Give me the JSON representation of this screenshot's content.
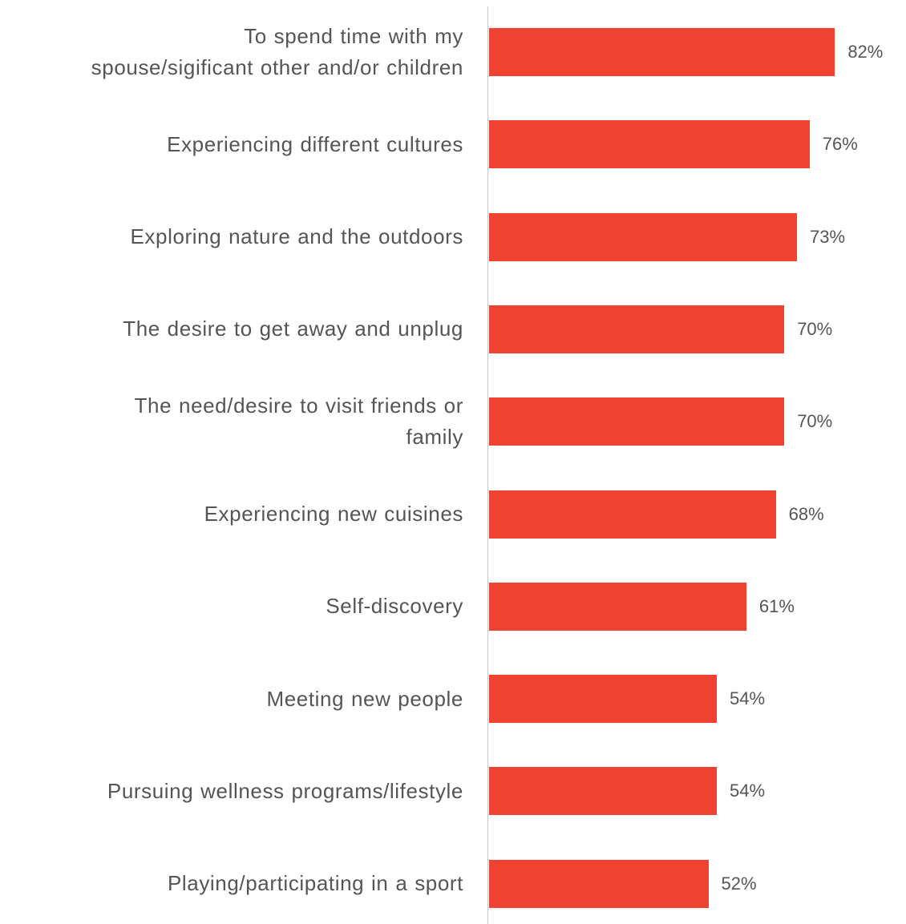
{
  "chart_data": {
    "type": "bar",
    "orientation": "horizontal",
    "title": "",
    "xlabel": "",
    "ylabel": "",
    "xlim": [
      0,
      100
    ],
    "grid": false,
    "legend": "none",
    "unit": "%",
    "bar_color": "#ee4331",
    "categories": [
      "To spend time with my spouse/sigificant other and/or children",
      "Experiencing different cultures",
      "Exploring nature and the outdoors",
      "The desire to get away and unplug",
      "The need/desire to visit friends or family",
      "Experiencing new cuisines",
      "Self-discovery",
      "Meeting new people",
      "Pursuing wellness programs/lifestyle",
      "Playing/participating in a sport"
    ],
    "category_lines": [
      [
        "To spend time with my",
        "spouse/sigificant other and/or children"
      ],
      [
        "Experiencing different cultures"
      ],
      [
        "Exploring nature and the outdoors"
      ],
      [
        "The desire to get away and unplug"
      ],
      [
        "The need/desire to visit friends or",
        "family"
      ],
      [
        "Experiencing new cuisines"
      ],
      [
        "Self-discovery"
      ],
      [
        "Meeting new people"
      ],
      [
        "Pursuing wellness programs/lifestyle"
      ],
      [
        "Playing/participating in a sport"
      ]
    ],
    "values": [
      82,
      76,
      73,
      70,
      70,
      68,
      61,
      54,
      54,
      52
    ],
    "value_labels": [
      "82%",
      "76%",
      "73%",
      "70%",
      "70%",
      "68%",
      "61%",
      "54%",
      "54%",
      "52%"
    ]
  }
}
